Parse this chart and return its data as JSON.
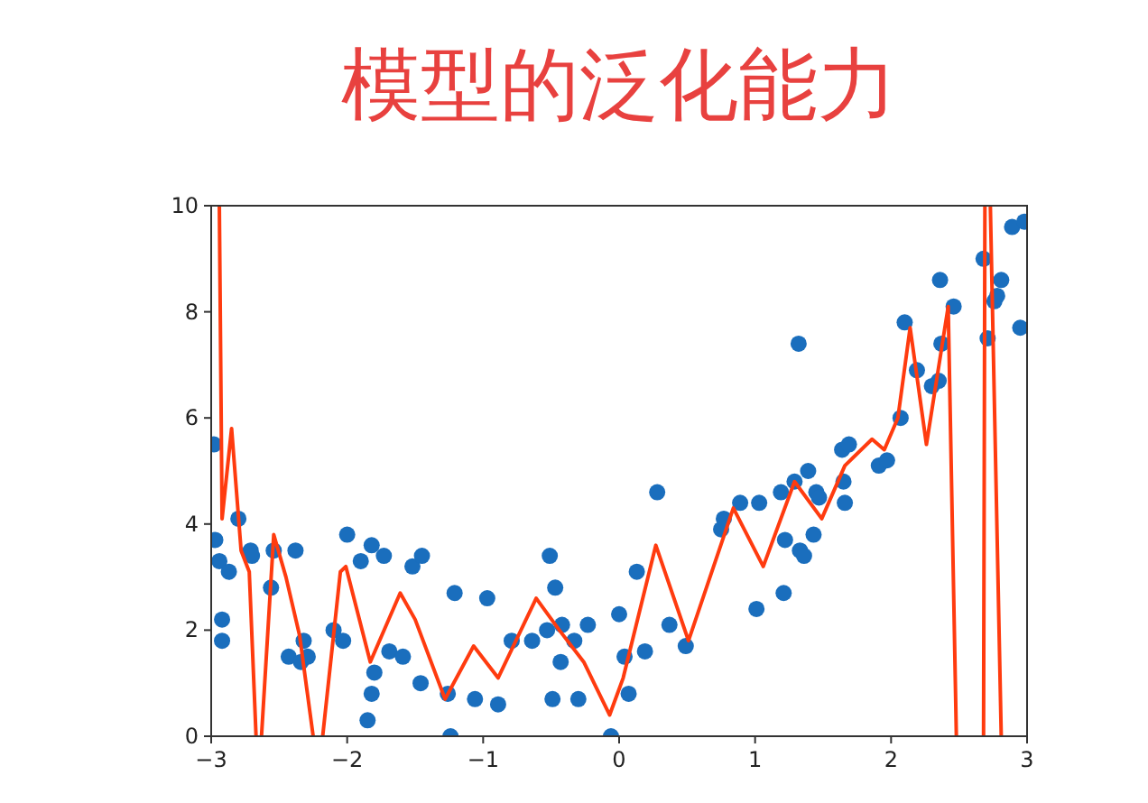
{
  "chart_data": {
    "type": "scatter",
    "title": "模型的泛化能力",
    "xlim": [
      -3,
      3
    ],
    "ylim": [
      0,
      10
    ],
    "xticks": [
      {
        "value": -3,
        "label": "−3"
      },
      {
        "value": -2,
        "label": "−2"
      },
      {
        "value": -1,
        "label": "−1"
      },
      0,
      1,
      2,
      3
    ],
    "yticks": [
      0,
      2,
      4,
      6,
      8,
      10
    ],
    "grid": false,
    "series": [
      {
        "marker": "circle",
        "color": "#1a6ebd",
        "x": [
          -2.98,
          -2.97,
          -2.94,
          -2.87,
          -2.92,
          -2.92,
          -2.8,
          -2.71,
          -2.7,
          -2.56,
          -2.54,
          -2.38,
          -2.43,
          -2.34,
          -2.32,
          -2.29,
          -2.1,
          -2.03,
          -2.0,
          -1.9,
          -1.82,
          -1.73,
          -1.8,
          -1.82,
          -1.85,
          -1.69,
          -1.59,
          -1.52,
          -1.45,
          -1.46,
          -1.26,
          -1.24,
          -1.21,
          -1.06,
          -0.97,
          -0.89,
          -0.79,
          -0.64,
          -0.53,
          -0.51,
          -0.47,
          -0.42,
          -0.43,
          -0.49,
          -0.33,
          -0.3,
          -0.23,
          -0.06,
          0.0,
          0.04,
          0.07,
          0.13,
          0.19,
          0.28,
          0.37,
          0.49,
          0.75,
          0.77,
          0.89,
          1.01,
          1.03,
          1.21,
          1.22,
          1.19,
          1.32,
          1.29,
          1.39,
          1.33,
          1.36,
          1.43,
          1.45,
          1.47,
          1.64,
          1.69,
          1.65,
          1.66,
          1.91,
          1.97,
          2.07,
          2.1,
          2.19,
          2.3,
          2.35,
          2.37,
          2.36,
          2.46,
          2.68,
          2.71,
          2.76,
          2.78,
          2.81,
          2.89,
          2.98,
          2.95
        ],
        "values": [
          5.5,
          3.7,
          3.3,
          3.1,
          2.2,
          1.8,
          4.1,
          3.5,
          3.4,
          2.8,
          3.5,
          3.5,
          1.5,
          1.4,
          1.8,
          1.5,
          2.0,
          1.8,
          3.8,
          3.3,
          3.6,
          3.4,
          1.2,
          0.8,
          0.3,
          1.6,
          1.5,
          3.2,
          3.4,
          1.0,
          0.8,
          0.0,
          2.7,
          0.7,
          2.6,
          0.6,
          1.8,
          1.8,
          2.0,
          3.4,
          2.8,
          2.1,
          1.4,
          0.7,
          1.8,
          0.7,
          2.1,
          0.0,
          2.3,
          1.5,
          0.8,
          3.1,
          1.6,
          4.6,
          2.1,
          1.7,
          3.9,
          4.1,
          4.4,
          2.4,
          4.4,
          2.7,
          3.7,
          4.6,
          7.4,
          4.8,
          5.0,
          3.5,
          3.4,
          3.8,
          4.6,
          4.5,
          5.4,
          5.5,
          4.8,
          4.4,
          5.1,
          5.2,
          6.0,
          7.8,
          6.9,
          6.6,
          6.7,
          7.4,
          8.6,
          8.1,
          9.0,
          7.5,
          8.2,
          8.3,
          8.6,
          9.6,
          9.7,
          7.7
        ]
      },
      {
        "type": "line",
        "color": "#ff3b0f",
        "x": [
          -2.94,
          -2.92,
          -2.85,
          -2.78,
          -2.72,
          -2.67,
          null,
          -2.63,
          -2.54,
          -2.45,
          -2.35,
          -2.25,
          null,
          -2.18,
          -2.05,
          -2.01,
          -1.83,
          -1.61,
          -1.5,
          -1.28,
          -1.07,
          -0.89,
          -0.61,
          -0.44,
          -0.26,
          -0.07,
          0.03,
          0.27,
          0.51,
          0.84,
          1.02,
          1.06,
          1.29,
          1.49,
          1.66,
          1.86,
          1.95,
          2.05,
          2.14,
          2.26,
          2.42,
          2.48,
          null,
          2.68,
          2.69,
          null,
          2.73,
          2.81
        ],
        "values": [
          10,
          4.1,
          5.8,
          3.5,
          3.1,
          0,
          null,
          0,
          3.8,
          3.0,
          1.9,
          0,
          null,
          0,
          3.1,
          3.2,
          1.4,
          2.7,
          2.2,
          0.7,
          1.7,
          1.1,
          2.6,
          2.0,
          1.4,
          0.4,
          1.1,
          3.6,
          1.8,
          4.3,
          3.4,
          3.2,
          4.8,
          4.1,
          5.1,
          5.6,
          5.4,
          6.0,
          7.7,
          5.5,
          8.1,
          0,
          null,
          0,
          10,
          null,
          10,
          0
        ]
      }
    ]
  }
}
